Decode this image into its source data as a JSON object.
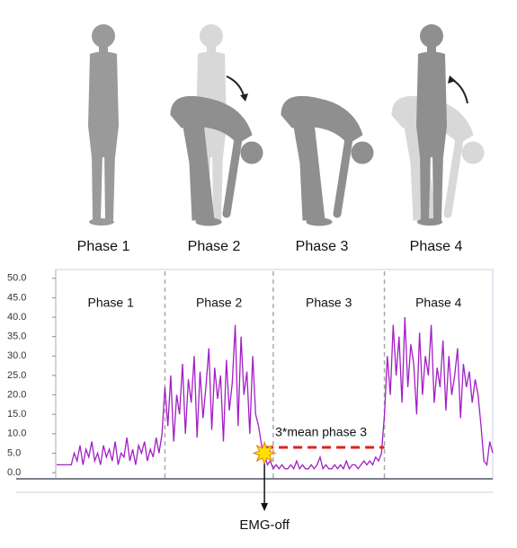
{
  "illustration": {
    "labels": [
      "Phase 1",
      "Phase 2",
      "Phase 3",
      "Phase 4"
    ]
  },
  "chart_data": {
    "type": "line",
    "phase_labels": [
      "Phase 1",
      "Phase 2",
      "Phase 3",
      "Phase 4"
    ],
    "phase_boundaries": [
      37,
      74,
      112
    ],
    "xlim": [
      0,
      149
    ],
    "ylim": [
      -1.6,
      51.8
    ],
    "yticks": [
      {
        "value": 0,
        "label": "0.0"
      },
      {
        "value": 5,
        "label": "5.0"
      },
      {
        "value": 10,
        "label": "10.0"
      },
      {
        "value": 15,
        "label": "15.0"
      },
      {
        "value": 20,
        "label": "20.0"
      },
      {
        "value": 25,
        "label": "25.0"
      },
      {
        "value": 30,
        "label": "30.0"
      },
      {
        "value": 35,
        "label": "35.0"
      },
      {
        "value": 40,
        "label": "40.0"
      },
      {
        "value": 45,
        "label": "45.0"
      },
      {
        "value": 50,
        "label": "50.0"
      }
    ],
    "color": "#a21fc4",
    "values": [
      2,
      2,
      2,
      2,
      2,
      2,
      5,
      3,
      7,
      2,
      6,
      4,
      8,
      3,
      5,
      2,
      7,
      4,
      6,
      3,
      8,
      2,
      5,
      4,
      9,
      3,
      6,
      2,
      7,
      5,
      8,
      3,
      6,
      4,
      9,
      5,
      10,
      22,
      12,
      25,
      8,
      20,
      15,
      28,
      10,
      24,
      18,
      30,
      9,
      26,
      14,
      22,
      32,
      11,
      27,
      19,
      25,
      8,
      29,
      16,
      23,
      38,
      12,
      35,
      20,
      26,
      10,
      30,
      15,
      12,
      7,
      5,
      2,
      3,
      1,
      2,
      1,
      2,
      1,
      1,
      2,
      1,
      3,
      1,
      2,
      1,
      1,
      2,
      1,
      2,
      4,
      1,
      2,
      1,
      1,
      2,
      1,
      2,
      1,
      3,
      1,
      2,
      2,
      1,
      2,
      3,
      2,
      3,
      2,
      4,
      3,
      5,
      15,
      30,
      20,
      38,
      25,
      35,
      18,
      40,
      22,
      33,
      28,
      15,
      36,
      20,
      30,
      25,
      38,
      18,
      27,
      22,
      34,
      16,
      30,
      20,
      25,
      32,
      14,
      28,
      22,
      26,
      18,
      24,
      20,
      12,
      3,
      2,
      8,
      5
    ],
    "threshold": {
      "label": "3*mean phase 3",
      "value": 6.5,
      "start": 71,
      "end": 112,
      "color": "#e02020"
    },
    "emg_off": {
      "label": "EMG-off",
      "index": 71,
      "value": 5
    }
  }
}
